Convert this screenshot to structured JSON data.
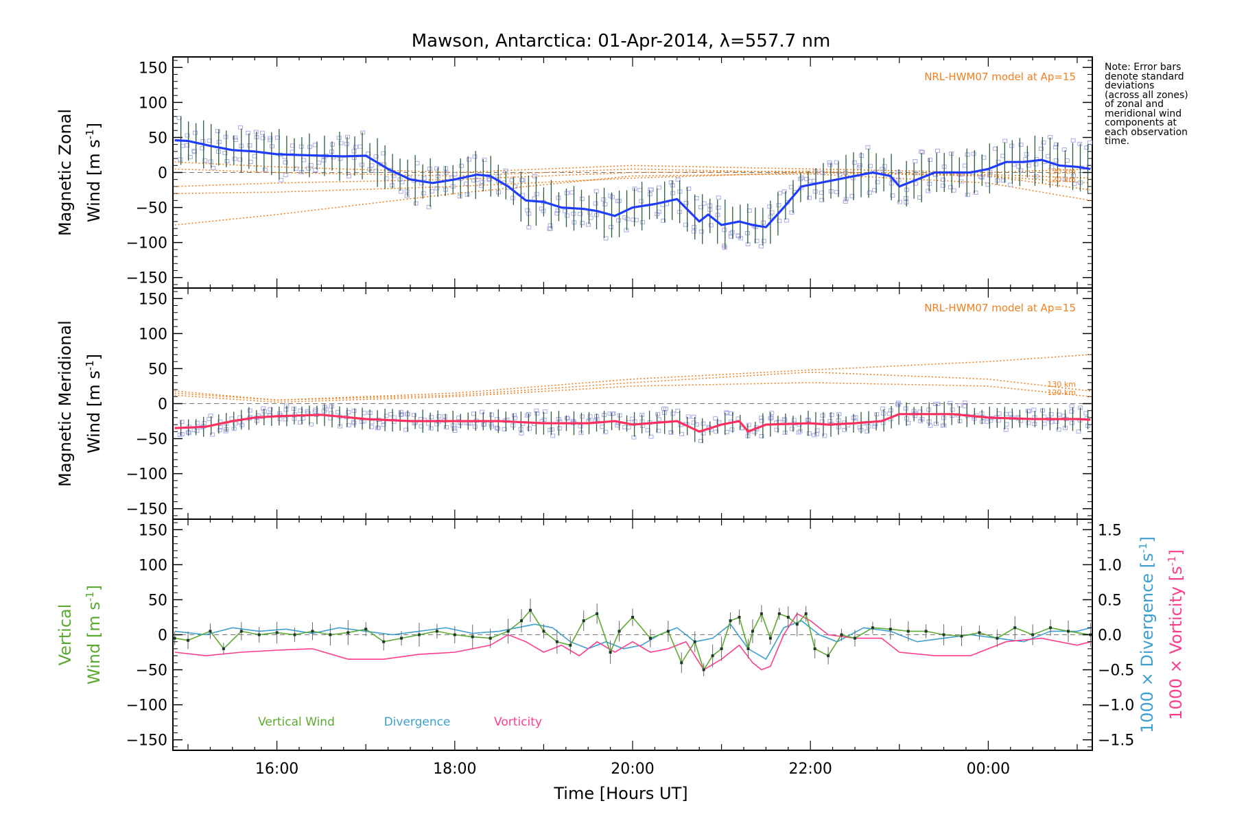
{
  "chart_data": {
    "type": "line",
    "title": "Mawson, Antarctica: 01-Apr-2014, λ=557.7 nm",
    "xlabel": "Time [Hours UT]",
    "x_ticks": [
      {
        "hour": 16,
        "label": "16:00"
      },
      {
        "hour": 18,
        "label": "18:00"
      },
      {
        "hour": 20,
        "label": "20:00"
      },
      {
        "hour": 22,
        "label": "22:00"
      },
      {
        "hour": 24,
        "label": "00:00"
      }
    ],
    "xlim_hours": [
      14.83,
      25.17
    ],
    "note_lines": [
      "Note: Error bars",
      "denote standard",
      "deviations",
      "(across all zones)",
      "of zonal and",
      "meridional wind",
      "components at",
      "each observation",
      "time."
    ],
    "colors": {
      "zonal": "#1e3cff",
      "meridional": "#ff3060",
      "model": "#f08020",
      "vertical": "#5aaa30",
      "divergence": "#3c9fd0",
      "vorticity": "#ff3c8c",
      "zone_points": "#a8a8e8"
    },
    "panels": [
      {
        "ylabel_line1": "Magnetic Zonal",
        "ylabel_line2": "Wind [m s",
        "ylabel_sup": "-1",
        "ylabel_end": "]",
        "ylim": [
          -165,
          165
        ],
        "yticks": [
          -150,
          -100,
          -50,
          0,
          50,
          100,
          150
        ],
        "model_label": "NRL-HWM07 model at Ap=15",
        "model_alt_labels": [
          "130 km",
          "120 km"
        ],
        "series": [
          {
            "name": "",
            "x": [
              14.85,
              15.0,
              15.25,
              15.5,
              15.75,
              16.0,
              16.25,
              16.5,
              16.75,
              17.0,
              17.25,
              17.5,
              17.75,
              18.0,
              18.25,
              18.4,
              18.6,
              18.8,
              19.0,
              19.2,
              19.45,
              19.6,
              19.8,
              20.0,
              20.25,
              20.5,
              20.75,
              20.85,
              21.0,
              21.2,
              21.35,
              21.5,
              21.7,
              21.9,
              22.1,
              22.3,
              22.5,
              22.7,
              22.9,
              23.0,
              23.2,
              23.4,
              23.6,
              23.8,
              24.0,
              24.2,
              24.4,
              24.6,
              24.8,
              25.0,
              25.15
            ],
            "values": [
              46,
              45,
              38,
              32,
              30,
              26,
              25,
              24,
              23,
              24,
              5,
              -10,
              -15,
              -10,
              -3,
              -5,
              -20,
              -40,
              -42,
              -50,
              -52,
              -55,
              -62,
              -50,
              -45,
              -38,
              -70,
              -60,
              -75,
              -70,
              -75,
              -78,
              -50,
              -20,
              -15,
              -10,
              -5,
              0,
              -5,
              -20,
              -10,
              0,
              0,
              0,
              5,
              15,
              15,
              18,
              10,
              8,
              5
            ]
          }
        ],
        "model_curves": [
          {
            "x": [
              14.85,
              16,
              18,
              20,
              22,
              24,
              25.15
            ],
            "values": [
              -75,
              -60,
              -30,
              -5,
              -2,
              -15,
              -40
            ]
          },
          {
            "x": [
              14.85,
              16,
              18,
              20,
              22,
              24,
              25.15
            ],
            "values": [
              -30,
              -28,
              -20,
              -8,
              0,
              -5,
              -25
            ]
          },
          {
            "x": [
              14.85,
              16,
              18,
              20,
              22,
              24,
              25.15
            ],
            "values": [
              -20,
              -15,
              -10,
              0,
              2,
              -5,
              -15
            ]
          },
          {
            "x": [
              14.85,
              16,
              18,
              20,
              22,
              24,
              25.15
            ],
            "values": [
              15,
              8,
              0,
              10,
              5,
              0,
              5
            ]
          },
          {
            "x": [
              14.85,
              16,
              18,
              20,
              22,
              24,
              25.15
            ],
            "values": [
              5,
              0,
              -5,
              5,
              0,
              -3,
              -8
            ]
          }
        ]
      },
      {
        "ylabel_line1": "Magnetic Meridional",
        "ylabel_line2": "Wind [m s",
        "ylabel_sup": "-1",
        "ylabel_end": "]",
        "ylim": [
          -165,
          165
        ],
        "yticks": [
          -150,
          -100,
          -50,
          0,
          50,
          100,
          150
        ],
        "model_label": "NRL-HWM07 model at Ap=15",
        "model_alt_labels": [
          "130 km",
          "120 km"
        ],
        "series": [
          {
            "name": "",
            "x": [
              14.85,
              15.2,
              15.5,
              15.75,
              16.0,
              16.5,
              17.0,
              17.5,
              18.0,
              18.5,
              19.0,
              19.5,
              19.8,
              20.0,
              20.5,
              20.75,
              21.0,
              21.2,
              21.3,
              21.5,
              22.0,
              22.2,
              22.5,
              22.8,
              23.0,
              23.3,
              23.6,
              24.0,
              24.5,
              25.0,
              25.15
            ],
            "values": [
              -35,
              -33,
              -25,
              -20,
              -18,
              -16,
              -22,
              -25,
              -25,
              -25,
              -28,
              -28,
              -25,
              -30,
              -25,
              -40,
              -30,
              -25,
              -40,
              -30,
              -28,
              -30,
              -28,
              -25,
              -15,
              -15,
              -15,
              -20,
              -22,
              -22,
              -23
            ]
          }
        ],
        "model_curves": [
          {
            "x": [
              14.85,
              16,
              18,
              20,
              22,
              24,
              25.15
            ],
            "values": [
              18,
              5,
              15,
              35,
              48,
              60,
              70
            ]
          },
          {
            "x": [
              14.85,
              16,
              18,
              20,
              22,
              24,
              25.15
            ],
            "values": [
              15,
              5,
              12,
              30,
              45,
              35,
              18
            ]
          },
          {
            "x": [
              14.85,
              16,
              18,
              20,
              22,
              24,
              25.15
            ],
            "values": [
              12,
              2,
              10,
              25,
              30,
              25,
              10
            ]
          }
        ]
      },
      {
        "ylabel_line1": "Vertical",
        "ylabel_line2": "Wind [m s",
        "ylabel_sup": "-1",
        "ylabel_end": "]",
        "ylim": [
          -165,
          165
        ],
        "yticks": [
          -150,
          -100,
          -50,
          0,
          50,
          100,
          150
        ],
        "right_ylim": [
          -1.65,
          1.65
        ],
        "right_yticks": [
          {
            "value": -1.5,
            "label": "-1.5"
          },
          {
            "value": -1.0,
            "label": "-1.0"
          },
          {
            "value": -0.5,
            "label": "-0.5"
          },
          {
            "value": 0.0,
            "label": "0.0"
          },
          {
            "value": 0.5,
            "label": "0.5"
          },
          {
            "value": 1.0,
            "label": "1.0"
          },
          {
            "value": 1.5,
            "label": "1.5"
          }
        ],
        "right_label_divergence": "1000 × Divergence [s",
        "right_label_vorticity": "1000 × Vorticity [s",
        "right_label_sup": "-1",
        "right_label_end": "]",
        "legend": [
          {
            "name": "Vertical Wind",
            "color": "#5aaa30"
          },
          {
            "name": "Divergence",
            "color": "#3c9fd0"
          },
          {
            "name": "Vorticity",
            "color": "#ff3c8c"
          }
        ],
        "series": [
          {
            "name": "Vertical Wind",
            "axis": "left",
            "x": [
              14.85,
              15.0,
              15.25,
              15.4,
              15.6,
              15.8,
              16.0,
              16.2,
              16.4,
              16.6,
              16.8,
              17.0,
              17.2,
              17.4,
              17.6,
              17.8,
              18.0,
              18.2,
              18.4,
              18.6,
              18.75,
              18.85,
              19.0,
              19.15,
              19.3,
              19.45,
              19.6,
              19.75,
              19.85,
              20.0,
              20.2,
              20.4,
              20.55,
              20.7,
              20.8,
              20.9,
              21.0,
              21.1,
              21.2,
              21.3,
              21.35,
              21.45,
              21.55,
              21.65,
              21.75,
              21.85,
              21.95,
              22.05,
              22.2,
              22.35,
              22.5,
              22.7,
              22.9,
              23.1,
              23.3,
              23.5,
              23.7,
              23.9,
              24.1,
              24.3,
              24.5,
              24.7,
              24.9,
              25.15
            ],
            "values": [
              -5,
              -8,
              5,
              -20,
              5,
              0,
              3,
              0,
              5,
              0,
              3,
              8,
              -10,
              -5,
              0,
              5,
              0,
              -3,
              -5,
              5,
              20,
              35,
              5,
              -10,
              -15,
              20,
              30,
              -25,
              5,
              25,
              -5,
              5,
              -40,
              -10,
              -50,
              -30,
              -20,
              20,
              25,
              -20,
              5,
              30,
              -5,
              30,
              25,
              15,
              30,
              -20,
              -30,
              0,
              -5,
              10,
              8,
              5,
              5,
              0,
              -2,
              3,
              -5,
              10,
              0,
              10,
              5,
              0
            ]
          },
          {
            "name": "Divergence",
            "axis": "right",
            "x": [
              14.85,
              15.2,
              15.5,
              15.8,
              16.1,
              16.4,
              16.7,
              17.0,
              17.3,
              17.6,
              17.9,
              18.2,
              18.5,
              18.7,
              18.9,
              19.1,
              19.3,
              19.5,
              19.7,
              19.9,
              20.1,
              20.3,
              20.5,
              20.7,
              20.9,
              21.1,
              21.3,
              21.5,
              21.7,
              21.9,
              22.1,
              22.3,
              22.6,
              22.9,
              23.2,
              23.5,
              23.8,
              24.1,
              24.4,
              24.7,
              25.0,
              25.15
            ],
            "values": [
              0.05,
              0.0,
              0.1,
              0.05,
              0.08,
              0.02,
              0.1,
              0.05,
              0.0,
              0.05,
              0.1,
              0.02,
              0.05,
              0.1,
              0.15,
              0.1,
              -0.1,
              -0.2,
              -0.1,
              -0.2,
              -0.15,
              0.0,
              0.1,
              -0.1,
              -0.05,
              0.15,
              -0.2,
              -0.35,
              0.1,
              0.2,
              0.0,
              -0.1,
              0.1,
              0.05,
              -0.1,
              -0.05,
              0.0,
              -0.05,
              -0.1,
              0.05,
              0.05,
              0.1
            ]
          },
          {
            "name": "Vorticity",
            "axis": "right",
            "x": [
              14.85,
              15.2,
              15.6,
              16.0,
              16.4,
              16.8,
              17.2,
              17.6,
              18.0,
              18.4,
              18.6,
              18.8,
              19.0,
              19.2,
              19.4,
              19.6,
              19.8,
              20.0,
              20.2,
              20.4,
              20.6,
              20.8,
              21.0,
              21.2,
              21.35,
              21.45,
              21.55,
              21.7,
              21.85,
              22.0,
              22.2,
              22.5,
              22.8,
              23.0,
              23.4,
              23.8,
              24.2,
              24.6,
              25.0,
              25.15
            ],
            "values": [
              -0.25,
              -0.3,
              -0.25,
              -0.22,
              -0.2,
              -0.35,
              -0.35,
              -0.28,
              -0.25,
              -0.15,
              0.0,
              -0.1,
              -0.25,
              -0.15,
              -0.3,
              -0.1,
              -0.25,
              -0.1,
              -0.25,
              -0.2,
              -0.1,
              -0.5,
              -0.35,
              -0.15,
              -0.4,
              -0.5,
              -0.45,
              0.0,
              0.3,
              0.2,
              0.0,
              -0.05,
              -0.05,
              -0.25,
              -0.3,
              -0.3,
              -0.1,
              -0.05,
              -0.15,
              -0.1
            ]
          }
        ]
      }
    ]
  }
}
